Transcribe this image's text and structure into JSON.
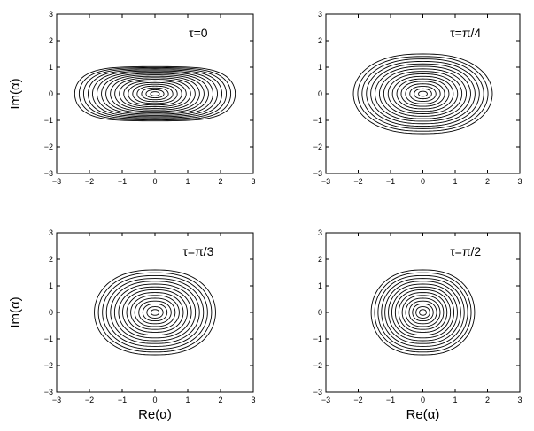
{
  "chart_data": [
    {
      "type": "contour",
      "panel": "top-left",
      "label": "τ=0",
      "xlabel": "",
      "ylabel": "Im(α)",
      "xlim": [
        -3,
        3
      ],
      "ylim": [
        -3,
        3
      ],
      "xticks": [
        "−3",
        "−2",
        "−1",
        "0",
        "1",
        "2",
        "3"
      ],
      "yticks": [
        "3",
        "2",
        "1",
        "0",
        "−1",
        "−2",
        "−3"
      ],
      "center": [
        0,
        0
      ],
      "outer_half_width_re": 2.45,
      "outer_half_height_im": 1.4,
      "waist": 0.3,
      "levels": 18
    },
    {
      "type": "contour",
      "panel": "top-right",
      "label": "τ=π/4",
      "xlabel": "",
      "ylabel": "",
      "xlim": [
        -3,
        3
      ],
      "ylim": [
        -3,
        3
      ],
      "xticks": [
        "−3",
        "−2",
        "−1",
        "0",
        "1",
        "2",
        "3"
      ],
      "yticks": [
        "3",
        "2",
        "1",
        "0",
        "−1",
        "−2",
        "−3"
      ],
      "center": [
        0,
        0
      ],
      "outer_half_width_re": 2.15,
      "outer_half_height_im": 1.5,
      "waist": 0,
      "levels": 16
    },
    {
      "type": "contour",
      "panel": "bottom-left",
      "label": "τ=π/3",
      "xlabel": "Re(α)",
      "ylabel": "Im(α)",
      "xlim": [
        -3,
        3
      ],
      "ylim": [
        -3,
        3
      ],
      "xticks": [
        "−3",
        "−2",
        "−1",
        "0",
        "1",
        "2",
        "3"
      ],
      "yticks": [
        "3",
        "2",
        "1",
        "0",
        "−1",
        "−2",
        "−3"
      ],
      "center": [
        0,
        0
      ],
      "outer_half_width_re": 1.85,
      "outer_half_height_im": 1.6,
      "waist": 0,
      "levels": 15
    },
    {
      "type": "contour",
      "panel": "bottom-right",
      "label": "τ=π/2",
      "xlabel": "Re(α)",
      "ylabel": "",
      "xlim": [
        -3,
        3
      ],
      "ylim": [
        -3,
        3
      ],
      "xticks": [
        "−3",
        "−2",
        "−1",
        "0",
        "1",
        "2",
        "3"
      ],
      "yticks": [
        "3",
        "2",
        "1",
        "0",
        "−1",
        "−2",
        "−3"
      ],
      "center": [
        0,
        0
      ],
      "outer_half_width_re": 1.6,
      "outer_half_height_im": 1.6,
      "waist": 0,
      "levels": 15
    }
  ]
}
